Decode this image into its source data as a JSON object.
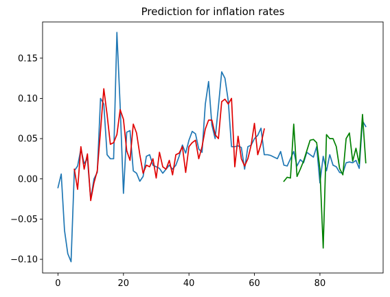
{
  "chart_data": {
    "type": "line",
    "title": "Prediction for inflation rates",
    "xlabel": "",
    "ylabel": "",
    "xlim": [
      -4.7,
      99.3
    ],
    "ylim": [
      -0.117,
      0.195
    ],
    "x_ticks": [
      0,
      20,
      40,
      60,
      80
    ],
    "x_tick_labels": [
      "0",
      "20",
      "40",
      "60",
      "80"
    ],
    "y_ticks": [
      -0.1,
      -0.05,
      0.0,
      0.05,
      0.1,
      0.15
    ],
    "y_tick_labels": [
      "−0.10",
      "−0.05",
      "0.00",
      "0.05",
      "0.10",
      "0.15"
    ],
    "grid": false,
    "legend": "none",
    "series": [
      {
        "color": "#1f77b4",
        "x": [
          0,
          1,
          2,
          3,
          4,
          5,
          6,
          7,
          8,
          9,
          10,
          11,
          12,
          13,
          14,
          15,
          16,
          17,
          18,
          19,
          20,
          21,
          22,
          23,
          24,
          25,
          26,
          27,
          28,
          29,
          30,
          31,
          32,
          33,
          34,
          35,
          36,
          37,
          38,
          39,
          40,
          41,
          42,
          43,
          44,
          45,
          46,
          47,
          48,
          49,
          50,
          51,
          52,
          53,
          54,
          55,
          56,
          57,
          58,
          59,
          60,
          61,
          62,
          63,
          64,
          65,
          66,
          67,
          68,
          69,
          70,
          71,
          72,
          73,
          74,
          75,
          76,
          77,
          78,
          79,
          80,
          81,
          82,
          83,
          84,
          85,
          86,
          87,
          88,
          89,
          90,
          91,
          92,
          93,
          94
        ],
        "y": [
          -0.011,
          0.006,
          -0.064,
          -0.093,
          -0.103,
          0.01,
          0.016,
          0.037,
          0.019,
          0.025,
          -0.025,
          0.0,
          0.008,
          0.1,
          0.093,
          0.03,
          0.025,
          0.025,
          0.182,
          0.09,
          -0.018,
          0.058,
          0.06,
          0.01,
          0.007,
          -0.003,
          0.003,
          0.028,
          0.03,
          0.017,
          0.015,
          0.013,
          0.007,
          0.012,
          0.017,
          0.012,
          0.017,
          0.028,
          0.042,
          0.032,
          0.048,
          0.059,
          0.056,
          0.037,
          0.033,
          0.093,
          0.121,
          0.067,
          0.05,
          0.09,
          0.133,
          0.125,
          0.097,
          0.04,
          0.04,
          0.041,
          0.039,
          0.012,
          0.04,
          0.042,
          0.05,
          0.054,
          0.063,
          0.03,
          0.03,
          0.029,
          0.027,
          0.025,
          0.034,
          0.017,
          0.016,
          0.025,
          0.034,
          0.016,
          0.024,
          0.02,
          0.033,
          0.03,
          0.027,
          0.04,
          -0.005,
          0.028,
          0.01,
          0.03,
          0.017,
          0.015,
          0.008,
          0.007,
          0.02,
          0.021,
          0.02,
          0.023,
          0.013,
          0.072,
          0.065
        ]
      },
      {
        "color": "#e00000",
        "x": [
          5,
          6,
          7,
          8,
          9,
          10,
          11,
          12,
          13,
          14,
          15,
          16,
          17,
          18,
          19,
          20,
          21,
          22,
          23,
          24,
          25,
          26,
          27,
          28,
          29,
          30,
          31,
          32,
          33,
          34,
          35,
          36,
          37,
          38,
          39,
          40,
          41,
          42,
          43,
          44,
          45,
          46,
          47,
          48,
          49,
          50,
          51,
          52,
          53,
          54,
          55,
          56,
          57,
          58,
          59,
          60,
          61,
          62,
          63
        ],
        "y": [
          0.012,
          -0.013,
          0.04,
          0.012,
          0.031,
          -0.027,
          -0.005,
          0.01,
          0.06,
          0.112,
          0.08,
          0.043,
          0.045,
          0.055,
          0.086,
          0.074,
          0.035,
          0.023,
          0.068,
          0.057,
          0.03,
          0.007,
          0.017,
          0.015,
          0.025,
          0.001,
          0.033,
          0.015,
          0.012,
          0.023,
          0.005,
          0.03,
          0.032,
          0.04,
          0.008,
          0.04,
          0.045,
          0.048,
          0.025,
          0.04,
          0.062,
          0.073,
          0.073,
          0.055,
          0.05,
          0.096,
          0.099,
          0.093,
          0.1,
          0.015,
          0.053,
          0.025,
          0.016,
          0.025,
          0.042,
          0.069,
          0.03,
          0.043,
          0.062
        ]
      },
      {
        "color": "#008000",
        "x": [
          69,
          70,
          71,
          72,
          73,
          74,
          75,
          76,
          77,
          78,
          79,
          80,
          81,
          82,
          83,
          84,
          85,
          86,
          87,
          88,
          89,
          90,
          91,
          92,
          93,
          94
        ],
        "y": [
          -0.003,
          0.002,
          0.001,
          0.068,
          0.003,
          0.012,
          0.022,
          0.035,
          0.048,
          0.049,
          0.045,
          0.012,
          -0.086,
          0.055,
          0.05,
          0.05,
          0.04,
          0.013,
          0.005,
          0.05,
          0.057,
          0.022,
          0.038,
          0.019,
          0.08,
          0.02
        ]
      }
    ]
  }
}
